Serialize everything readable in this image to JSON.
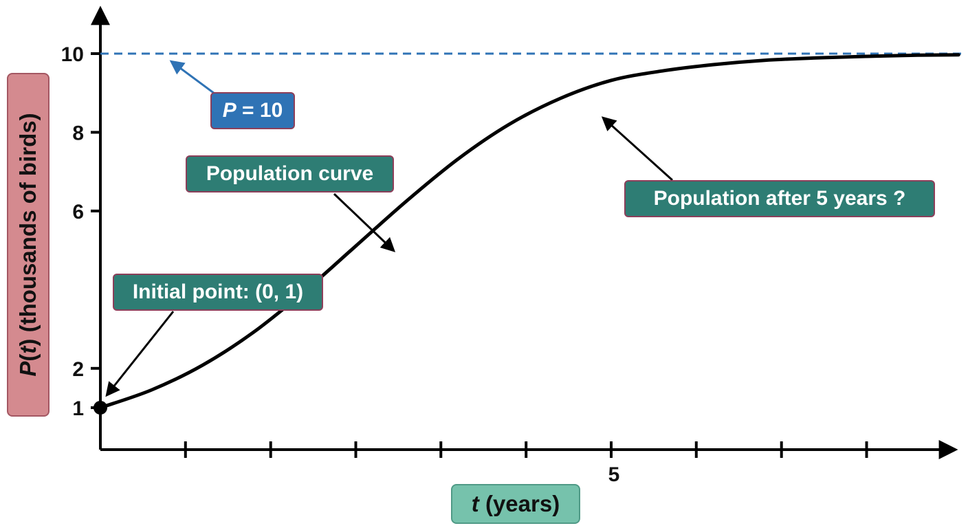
{
  "chart_data": {
    "type": "line",
    "x_axis_label": {
      "var": "t",
      "rest": " (years)"
    },
    "y_axis_label": {
      "p": "P",
      "open": "(",
      "t": "t",
      "close": ")",
      "rest": " (thousands of birds)"
    },
    "y_ticks": [
      "1",
      "2",
      "6",
      "8",
      "10"
    ],
    "y_tick_values": [
      1,
      2,
      6,
      8,
      10
    ],
    "x_tick_values": [
      0.833,
      1.667,
      2.5,
      3.333,
      4.167,
      5,
      5.833,
      6.667,
      7.5
    ],
    "x_tick_labels": [
      {
        "value": 5,
        "label": "5"
      }
    ],
    "xlim": [
      0,
      8.4
    ],
    "ylim": [
      0,
      11
    ],
    "asymptote": {
      "value": 10,
      "style": "dashed",
      "color": "#2f73b5"
    },
    "series": [
      {
        "x": [
          0,
          0.5,
          1,
          1.5,
          2,
          2.5,
          3,
          3.5,
          4,
          4.5,
          5,
          5.5,
          6,
          6.5,
          7,
          7.5,
          8,
          8.4
        ],
        "y": [
          1.0,
          1.45,
          2.08,
          2.92,
          3.96,
          5.11,
          6.26,
          7.32,
          8.2,
          8.86,
          9.32,
          9.56,
          9.72,
          9.83,
          9.89,
          9.93,
          9.96,
          9.97
        ],
        "color": "#000000"
      }
    ],
    "initial_point": {
      "x": 0,
      "y": 1
    },
    "annotations": [
      {
        "text_parts": [
          {
            "t": "P",
            "i": true
          },
          {
            "t": " = 10",
            "i": false
          }
        ],
        "style": "blue"
      },
      {
        "text_parts": [
          {
            "t": "Population curve",
            "i": false
          }
        ],
        "style": "teal"
      },
      {
        "text_parts": [
          {
            "t": "Population after 5 years ?",
            "i": false
          }
        ],
        "style": "teal"
      },
      {
        "text_parts": [
          {
            "t": "Initial point: (0, 1)",
            "i": false
          }
        ],
        "style": "teal"
      }
    ],
    "colors": {
      "curve": "#000000",
      "asymptote": "#2f73b5",
      "label_teal": "#2e7d74",
      "label_blue": "#2f73b5",
      "axis": "#000000"
    }
  }
}
